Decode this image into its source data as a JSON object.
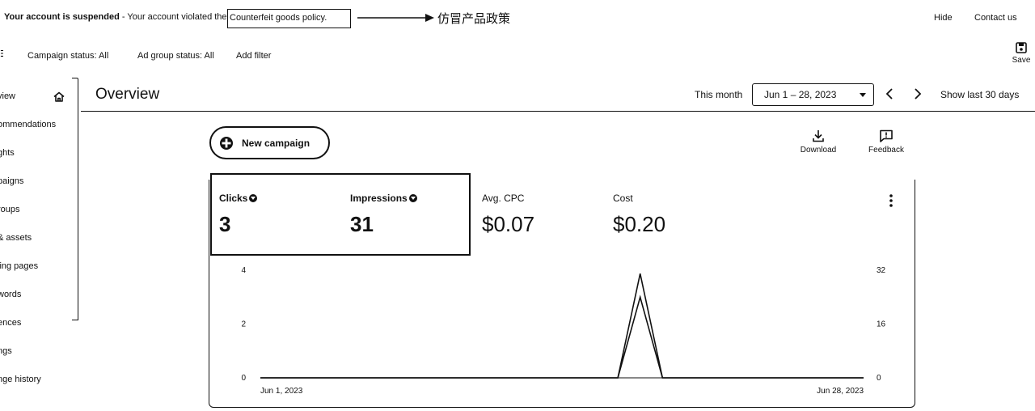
{
  "banner": {
    "status_prefix": "Your account is suspended",
    "status_message": " - Your account violated the ",
    "policy_name": "Counterfeit goods policy.",
    "annotation_note": "仿冒产品政策",
    "hide_label": "Hide",
    "contact_label": "Contact us"
  },
  "filters": {
    "menu_glyph": "☰",
    "campaign_status": "Campaign status: All",
    "ad_group_status": "Ad group status: All",
    "add_filter": "Add filter",
    "save_label": "Save"
  },
  "sidebar": {
    "items": [
      "view",
      "ommendations",
      "ghts",
      "paigns",
      "roups",
      "& assets",
      "ling pages",
      "words",
      "ences",
      "ngs",
      "nge history"
    ],
    "home_icon": "home-icon"
  },
  "header": {
    "title": "Overview",
    "range_label": "This month",
    "date_range": "Jun 1 – 28, 2023",
    "show_last": "Show last 30 days"
  },
  "toolbar": {
    "new_campaign": "New campaign",
    "download": "Download",
    "feedback": "Feedback"
  },
  "metrics": [
    {
      "label": "Clicks",
      "value": "3",
      "selected": true
    },
    {
      "label": "Impressions",
      "value": "31",
      "selected": true
    },
    {
      "label": "Avg. CPC",
      "value": "$0.07",
      "selected": false
    },
    {
      "label": "Cost",
      "value": "$0.20",
      "selected": false
    }
  ],
  "chart_data": {
    "type": "line",
    "x_start_label": "Jun 1, 2023",
    "x_end_label": "Jun 28, 2023",
    "days": 28,
    "left_axis": {
      "ticks": [
        0,
        2,
        4
      ],
      "range": [
        0,
        4
      ]
    },
    "right_axis": {
      "ticks": [
        0,
        16,
        32
      ],
      "range": [
        0,
        32
      ]
    },
    "series": [
      {
        "name": "Clicks",
        "axis": "left",
        "values": [
          0,
          0,
          0,
          0,
          0,
          0,
          0,
          0,
          0,
          0,
          0,
          0,
          0,
          0,
          0,
          0,
          0,
          3,
          0,
          0,
          0,
          0,
          0,
          0,
          0,
          0,
          0,
          0
        ]
      },
      {
        "name": "Impressions",
        "axis": "right",
        "values": [
          0,
          0,
          0,
          0,
          0,
          0,
          0,
          0,
          0,
          0,
          0,
          0,
          0,
          0,
          0,
          0,
          0,
          31,
          0,
          0,
          0,
          0,
          0,
          0,
          0,
          0,
          0,
          0
        ]
      }
    ]
  }
}
